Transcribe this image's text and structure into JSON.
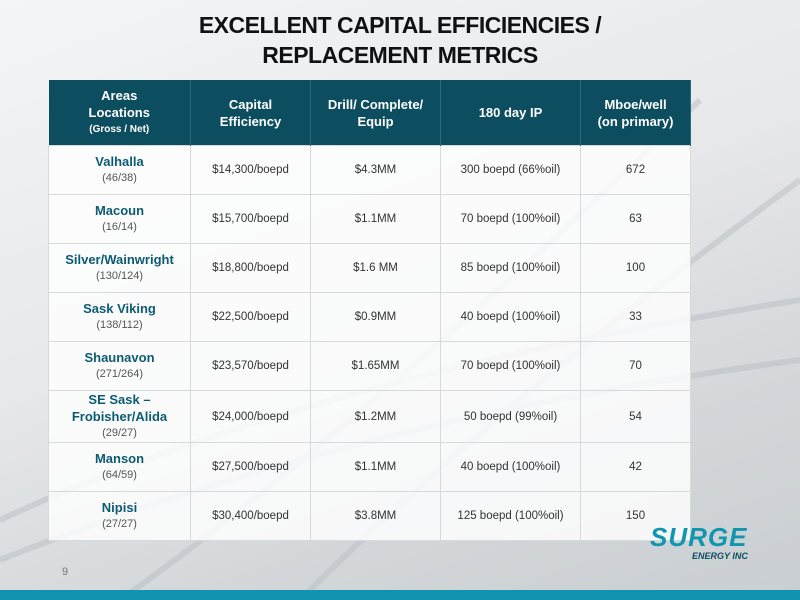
{
  "header": {
    "title_lines": [
      "EXCELLENT CAPITAL EFFICIENCIES /",
      "REPLACEMENT METRICS"
    ]
  },
  "table": {
    "columns": [
      {
        "lines": [
          "Areas",
          "Locations",
          "(Gross / Net)"
        ]
      },
      {
        "lines": [
          "Capital",
          "Efficiency"
        ]
      },
      {
        "lines": [
          "Drill/ Complete/",
          "Equip"
        ]
      },
      {
        "lines": [
          "180 day IP"
        ]
      },
      {
        "lines": [
          "Mboe/well",
          "(on primary)"
        ]
      }
    ],
    "rows": [
      {
        "area": [
          "Valhalla"
        ],
        "locations": "(46/38)",
        "cells": [
          "$14,300/boepd",
          "$4.3MM",
          "300 boepd (66%oil)",
          "672"
        ]
      },
      {
        "area": [
          "Macoun"
        ],
        "locations": "(16/14)",
        "cells": [
          "$15,700/boepd",
          "$1.1MM",
          "70 boepd (100%oil)",
          "63"
        ]
      },
      {
        "area": [
          "Silver/Wainwright"
        ],
        "locations": "(130/124)",
        "cells": [
          "$18,800/boepd",
          "$1.6 MM",
          "85 boepd (100%oil)",
          "100"
        ]
      },
      {
        "area": [
          "Sask Viking"
        ],
        "locations": "(138/112)",
        "cells": [
          "$22,500/boepd",
          "$0.9MM",
          "40 boepd (100%oil)",
          "33"
        ]
      },
      {
        "area": [
          "Shaunavon"
        ],
        "locations": "(271/264)",
        "cells": [
          "$23,570/boepd",
          "$1.65MM",
          "70 boepd (100%oil)",
          "70"
        ]
      },
      {
        "area": [
          "SE Sask –",
          "Frobisher/Alida"
        ],
        "locations": "(29/27)",
        "cells": [
          "$24,000/boepd",
          "$1.2MM",
          "50 boepd (99%oil)",
          "54"
        ]
      },
      {
        "area": [
          "Manson"
        ],
        "locations": "(64/59)",
        "cells": [
          "$27,500/boepd",
          "$1.1MM",
          "40 boepd (100%oil)",
          "42"
        ]
      },
      {
        "area": [
          "Nipisi"
        ],
        "locations": "(27/27)",
        "cells": [
          "$30,400/boepd",
          "$3.8MM",
          "125 boepd (100%oil)",
          "150"
        ]
      }
    ]
  },
  "footer": {
    "page_number": "9",
    "logo": "SURGE",
    "logo_sub": "ENERGY INC"
  }
}
